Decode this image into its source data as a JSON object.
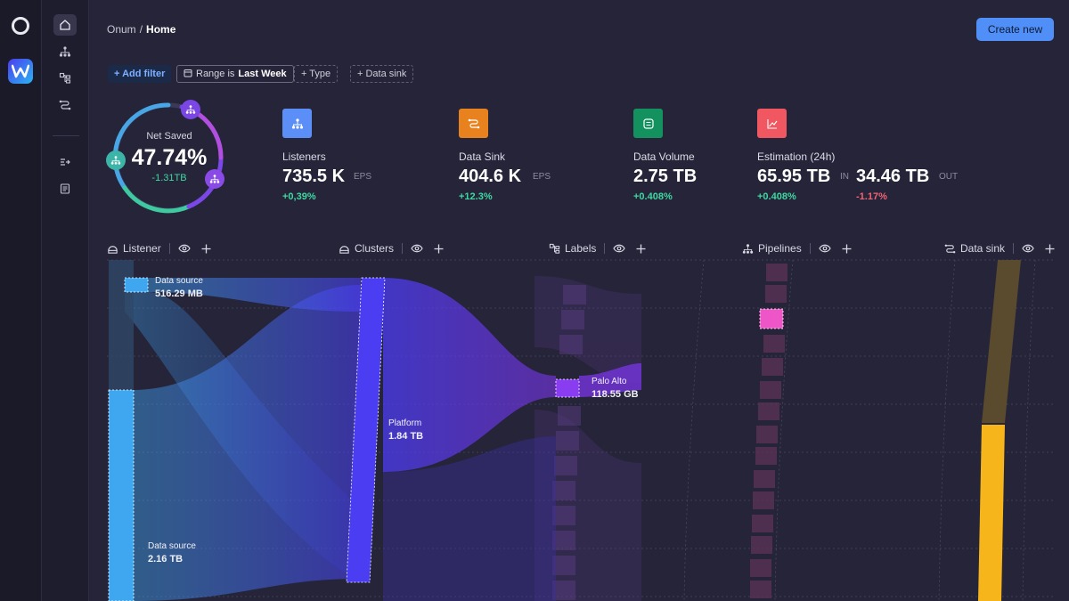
{
  "breadcrumb": {
    "root": "Onum",
    "separator": "/",
    "current": "Home"
  },
  "header": {
    "create_label": "Create new"
  },
  "filters": {
    "add_label": "+ Add filter",
    "range_prefix": "Range is",
    "range_value": "Last Week",
    "type_label": "+ Type",
    "sink_label": "+ Data sink"
  },
  "gauge": {
    "label": "Net Saved",
    "value": "47.74%",
    "delta": "-1.31TB"
  },
  "stats": [
    {
      "title": "Listeners",
      "value": "735.5 K",
      "unit": "EPS",
      "delta": "+0,39%",
      "color": "#5b8ff7",
      "icon": "hierarchy-icon"
    },
    {
      "title": "Data Sink",
      "value": "404.6 K",
      "unit": "EPS",
      "delta": "+12.3%",
      "color": "#e8821e",
      "icon": "route-icon"
    },
    {
      "title": "Data Volume",
      "value": "2.75 TB",
      "unit": "",
      "delta": "+0.408%",
      "color": "#13925f",
      "icon": "database-icon"
    },
    {
      "title": "Estimation (24h)",
      "value": "65.95 TB",
      "unit": "IN",
      "delta": "+0.408%",
      "value2": "34.46 TB",
      "unit2": "OUT",
      "delta2": "-1.17%",
      "color": "#f05760",
      "icon": "chart-icon"
    }
  ],
  "columns": [
    {
      "label": "Listener",
      "icon": "listener-icon"
    },
    {
      "label": "Clusters",
      "icon": "clusters-icon"
    },
    {
      "label": "Labels",
      "icon": "labels-icon"
    },
    {
      "label": "Pipelines",
      "icon": "pipelines-icon"
    },
    {
      "label": "Data sink",
      "icon": "data-sink-icon"
    }
  ],
  "nodes": {
    "source1": {
      "name": "Data source",
      "value": "516.29 MB"
    },
    "source2": {
      "name": "Data source",
      "value": "2.16 TB"
    },
    "cluster": {
      "name": "Platform",
      "value": "1.84 TB"
    },
    "label": {
      "name": "Palo Alto",
      "value": "118.55 GB"
    }
  },
  "colors": {
    "accent": "#4f8ff7",
    "background": "#252438",
    "cluster": "#4a3df2",
    "sink": "#f7b51c",
    "pipeline": "#ee56c7"
  }
}
